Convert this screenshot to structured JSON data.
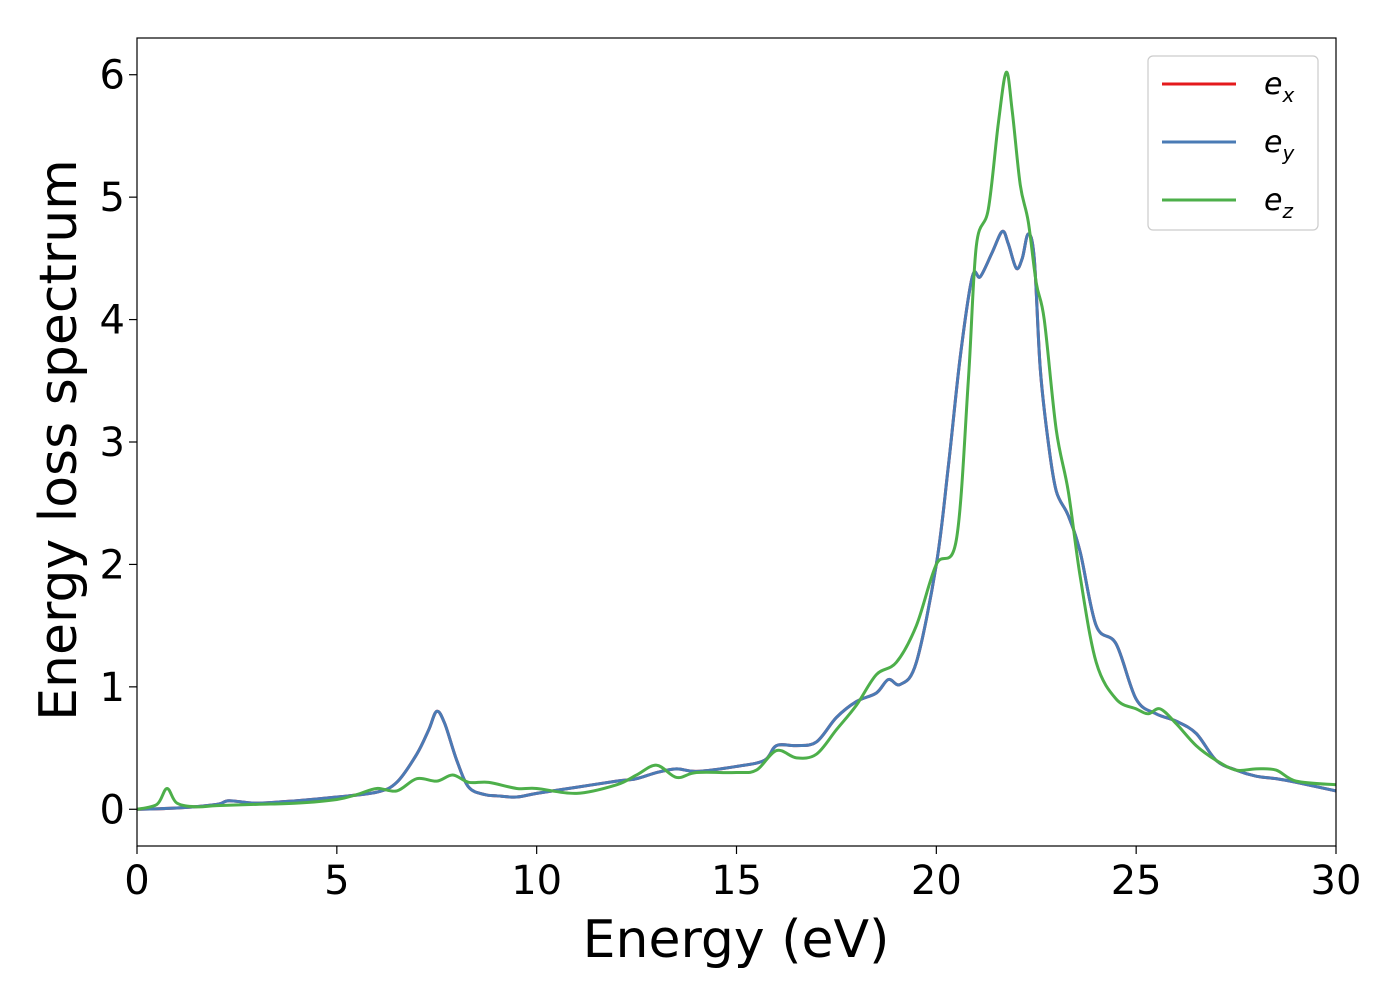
{
  "chart_data": {
    "type": "line",
    "xlabel": "Energy (eV)",
    "ylabel": "Energy loss spectrum",
    "xlim": [
      0,
      30
    ],
    "ylim": [
      -0.3,
      6.3
    ],
    "xticks": [
      0,
      5,
      10,
      15,
      20,
      25,
      30
    ],
    "yticks": [
      0,
      1,
      2,
      3,
      4,
      5,
      6
    ],
    "grid": false,
    "legend_position": "top-right",
    "series": [
      {
        "name": "e",
        "subscript": "x",
        "color": "#e41a1c",
        "x": [
          0,
          1,
          2,
          2.3,
          3,
          4,
          5,
          6,
          6.5,
          7,
          7.3,
          7.5,
          7.7,
          8,
          8.3,
          8.7,
          9,
          9.5,
          10,
          11,
          12,
          12.5,
          13,
          13.5,
          14,
          15,
          15.7,
          16,
          16.5,
          17,
          17.5,
          18,
          18.5,
          18.8,
          19.1,
          19.5,
          20,
          20.3,
          20.6,
          20.9,
          21.1,
          21.4,
          21.65,
          21.8,
          22,
          22.15,
          22.3,
          22.45,
          22.6,
          22.8,
          23,
          23.3,
          23.6,
          24,
          24.5,
          25,
          25.5,
          26,
          26.5,
          27,
          27.5,
          28,
          28.5,
          29,
          30
        ],
        "values": [
          0,
          0.01,
          0.04,
          0.07,
          0.05,
          0.07,
          0.1,
          0.14,
          0.22,
          0.45,
          0.65,
          0.8,
          0.7,
          0.4,
          0.18,
          0.12,
          0.11,
          0.1,
          0.13,
          0.18,
          0.23,
          0.25,
          0.3,
          0.33,
          0.31,
          0.35,
          0.4,
          0.52,
          0.52,
          0.55,
          0.75,
          0.88,
          0.95,
          1.06,
          1.02,
          1.2,
          2.0,
          2.8,
          3.7,
          4.35,
          4.35,
          4.55,
          4.72,
          4.62,
          4.42,
          4.5,
          4.7,
          4.5,
          3.6,
          3.0,
          2.6,
          2.4,
          2.1,
          1.5,
          1.35,
          0.9,
          0.78,
          0.72,
          0.62,
          0.4,
          0.32,
          0.27,
          0.25,
          0.22,
          0.15
        ]
      },
      {
        "name": "e",
        "subscript": "y",
        "color": "#4a7bb5",
        "x": [
          0,
          1,
          2,
          2.3,
          3,
          4,
          5,
          6,
          6.5,
          7,
          7.3,
          7.5,
          7.7,
          8,
          8.3,
          8.7,
          9,
          9.5,
          10,
          11,
          12,
          12.5,
          13,
          13.5,
          14,
          15,
          15.7,
          16,
          16.5,
          17,
          17.5,
          18,
          18.5,
          18.8,
          19.1,
          19.5,
          20,
          20.3,
          20.6,
          20.9,
          21.1,
          21.4,
          21.65,
          21.8,
          22,
          22.15,
          22.3,
          22.45,
          22.6,
          22.8,
          23,
          23.3,
          23.6,
          24,
          24.5,
          25,
          25.5,
          26,
          26.5,
          27,
          27.5,
          28,
          28.5,
          29,
          30
        ],
        "values": [
          0,
          0.01,
          0.04,
          0.07,
          0.05,
          0.07,
          0.1,
          0.14,
          0.22,
          0.45,
          0.65,
          0.8,
          0.7,
          0.4,
          0.18,
          0.12,
          0.11,
          0.1,
          0.13,
          0.18,
          0.23,
          0.25,
          0.3,
          0.33,
          0.31,
          0.35,
          0.4,
          0.52,
          0.52,
          0.55,
          0.75,
          0.88,
          0.95,
          1.06,
          1.02,
          1.2,
          2.0,
          2.8,
          3.7,
          4.35,
          4.35,
          4.55,
          4.72,
          4.62,
          4.42,
          4.5,
          4.7,
          4.5,
          3.6,
          3.0,
          2.6,
          2.4,
          2.1,
          1.5,
          1.35,
          0.9,
          0.78,
          0.72,
          0.62,
          0.4,
          0.32,
          0.27,
          0.25,
          0.22,
          0.15
        ]
      },
      {
        "name": "e",
        "subscript": "z",
        "color": "#4daf4a",
        "x": [
          0,
          0.5,
          0.75,
          1,
          1.5,
          2,
          3,
          4,
          5,
          5.5,
          6,
          6.5,
          7,
          7.5,
          7.9,
          8.3,
          8.8,
          9.5,
          10,
          11,
          12,
          12.5,
          13,
          13.5,
          14,
          15,
          15.5,
          16,
          16.5,
          17,
          17.5,
          18,
          18.5,
          19,
          19.5,
          20,
          20.5,
          20.8,
          21,
          21.3,
          21.55,
          21.75,
          21.9,
          22.1,
          22.3,
          22.5,
          22.7,
          23,
          23.3,
          23.6,
          24,
          24.5,
          25,
          25.3,
          25.6,
          26,
          26.5,
          27,
          27.5,
          28,
          28.5,
          29,
          30
        ],
        "values": [
          0,
          0.04,
          0.17,
          0.05,
          0.02,
          0.03,
          0.04,
          0.05,
          0.08,
          0.12,
          0.17,
          0.15,
          0.25,
          0.23,
          0.28,
          0.22,
          0.22,
          0.17,
          0.17,
          0.13,
          0.2,
          0.28,
          0.36,
          0.26,
          0.3,
          0.3,
          0.32,
          0.48,
          0.42,
          0.45,
          0.65,
          0.85,
          1.1,
          1.2,
          1.5,
          2.0,
          2.2,
          3.5,
          4.6,
          4.9,
          5.6,
          6.02,
          5.7,
          5.1,
          4.8,
          4.3,
          4.0,
          3.1,
          2.6,
          1.9,
          1.2,
          0.9,
          0.82,
          0.78,
          0.82,
          0.7,
          0.52,
          0.4,
          0.32,
          0.33,
          0.32,
          0.23,
          0.2
        ]
      }
    ]
  }
}
